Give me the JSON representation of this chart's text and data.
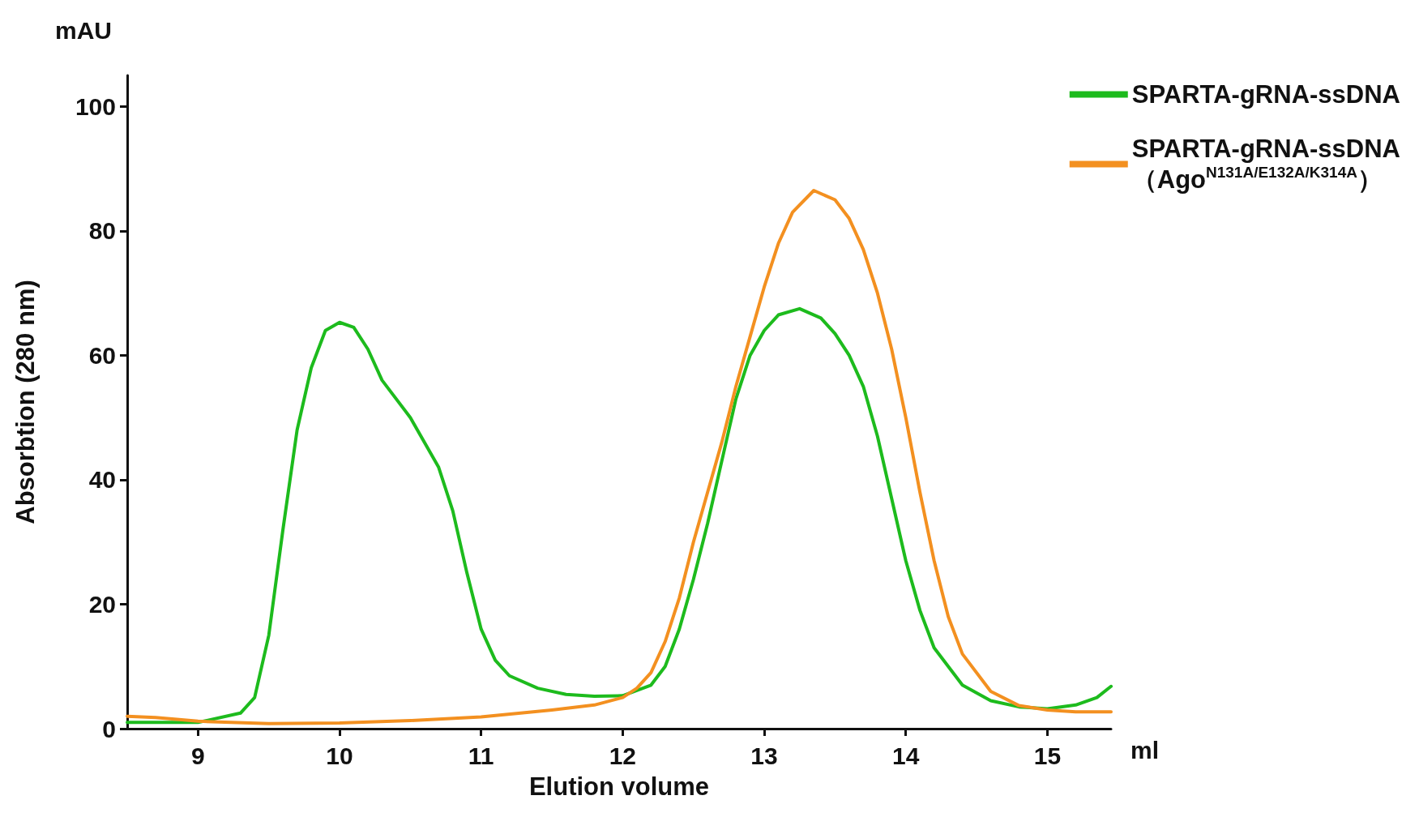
{
  "chart_data": {
    "type": "line",
    "xlabel": "Elution volume",
    "ylabel": "Absorbtion (280 nm)",
    "annotations": [
      "mAU",
      "ml"
    ],
    "xlim": [
      8.5,
      15.45
    ],
    "xticks": [
      9,
      10,
      11,
      12,
      13,
      14,
      15
    ],
    "ylim": [
      0,
      105
    ],
    "yticks": [
      0,
      20,
      40,
      60,
      80,
      100
    ],
    "grid": false,
    "legend": "top right",
    "marker": "none",
    "line_style": "solid",
    "series": [
      {
        "name": "SPARTA-gRNA-ssDNA",
        "color": "#1dbb1d",
        "x": [
          8.5,
          9.0,
          9.3,
          9.4,
          9.5,
          9.6,
          9.7,
          9.8,
          9.9,
          10.0,
          10.1,
          10.2,
          10.3,
          10.5,
          10.7,
          10.8,
          10.9,
          11.0,
          11.1,
          11.2,
          11.4,
          11.6,
          11.8,
          12.0,
          12.2,
          12.3,
          12.4,
          12.5,
          12.6,
          12.7,
          12.8,
          12.9,
          13.0,
          13.1,
          13.25,
          13.4,
          13.5,
          13.6,
          13.7,
          13.8,
          13.9,
          14.0,
          14.1,
          14.2,
          14.4,
          14.6,
          14.8,
          15.0,
          15.2,
          15.35,
          15.45
        ],
        "values": [
          1,
          1,
          2.5,
          5,
          15,
          32,
          48,
          58,
          64,
          65.3,
          64.5,
          61,
          56,
          50,
          42,
          35,
          25,
          16,
          11,
          8.5,
          6.5,
          5.5,
          5.2,
          5.3,
          7,
          10,
          16,
          24,
          33,
          43,
          53,
          60,
          64,
          66.5,
          67.5,
          66,
          63.5,
          60,
          55,
          47,
          37,
          27,
          19,
          13,
          7,
          4.5,
          3.5,
          3.2,
          3.8,
          5,
          6.8
        ]
      },
      {
        "name": "SPARTA-gRNA-ssDNA\n（Ago$^{N131A/E132A/K314A}$）",
        "color": "#f39020",
        "x": [
          8.5,
          8.7,
          9.0,
          9.5,
          10.0,
          10.5,
          11.0,
          11.5,
          11.8,
          12.0,
          12.1,
          12.2,
          12.3,
          12.4,
          12.5,
          12.6,
          12.7,
          12.8,
          12.9,
          13.0,
          13.1,
          13.2,
          13.35,
          13.5,
          13.6,
          13.7,
          13.8,
          13.9,
          14.0,
          14.1,
          14.2,
          14.3,
          14.4,
          14.6,
          14.8,
          15.0,
          15.2,
          15.45
        ],
        "values": [
          2,
          1.8,
          1.2,
          0.8,
          0.9,
          1.3,
          1.9,
          3,
          3.8,
          5,
          6.5,
          9,
          14,
          21,
          30,
          38,
          46,
          55,
          63,
          71,
          78,
          83,
          86.5,
          85,
          82,
          77,
          70,
          61,
          50,
          38,
          27,
          18,
          12,
          6,
          3.7,
          3,
          2.7,
          2.7
        ]
      }
    ]
  }
}
